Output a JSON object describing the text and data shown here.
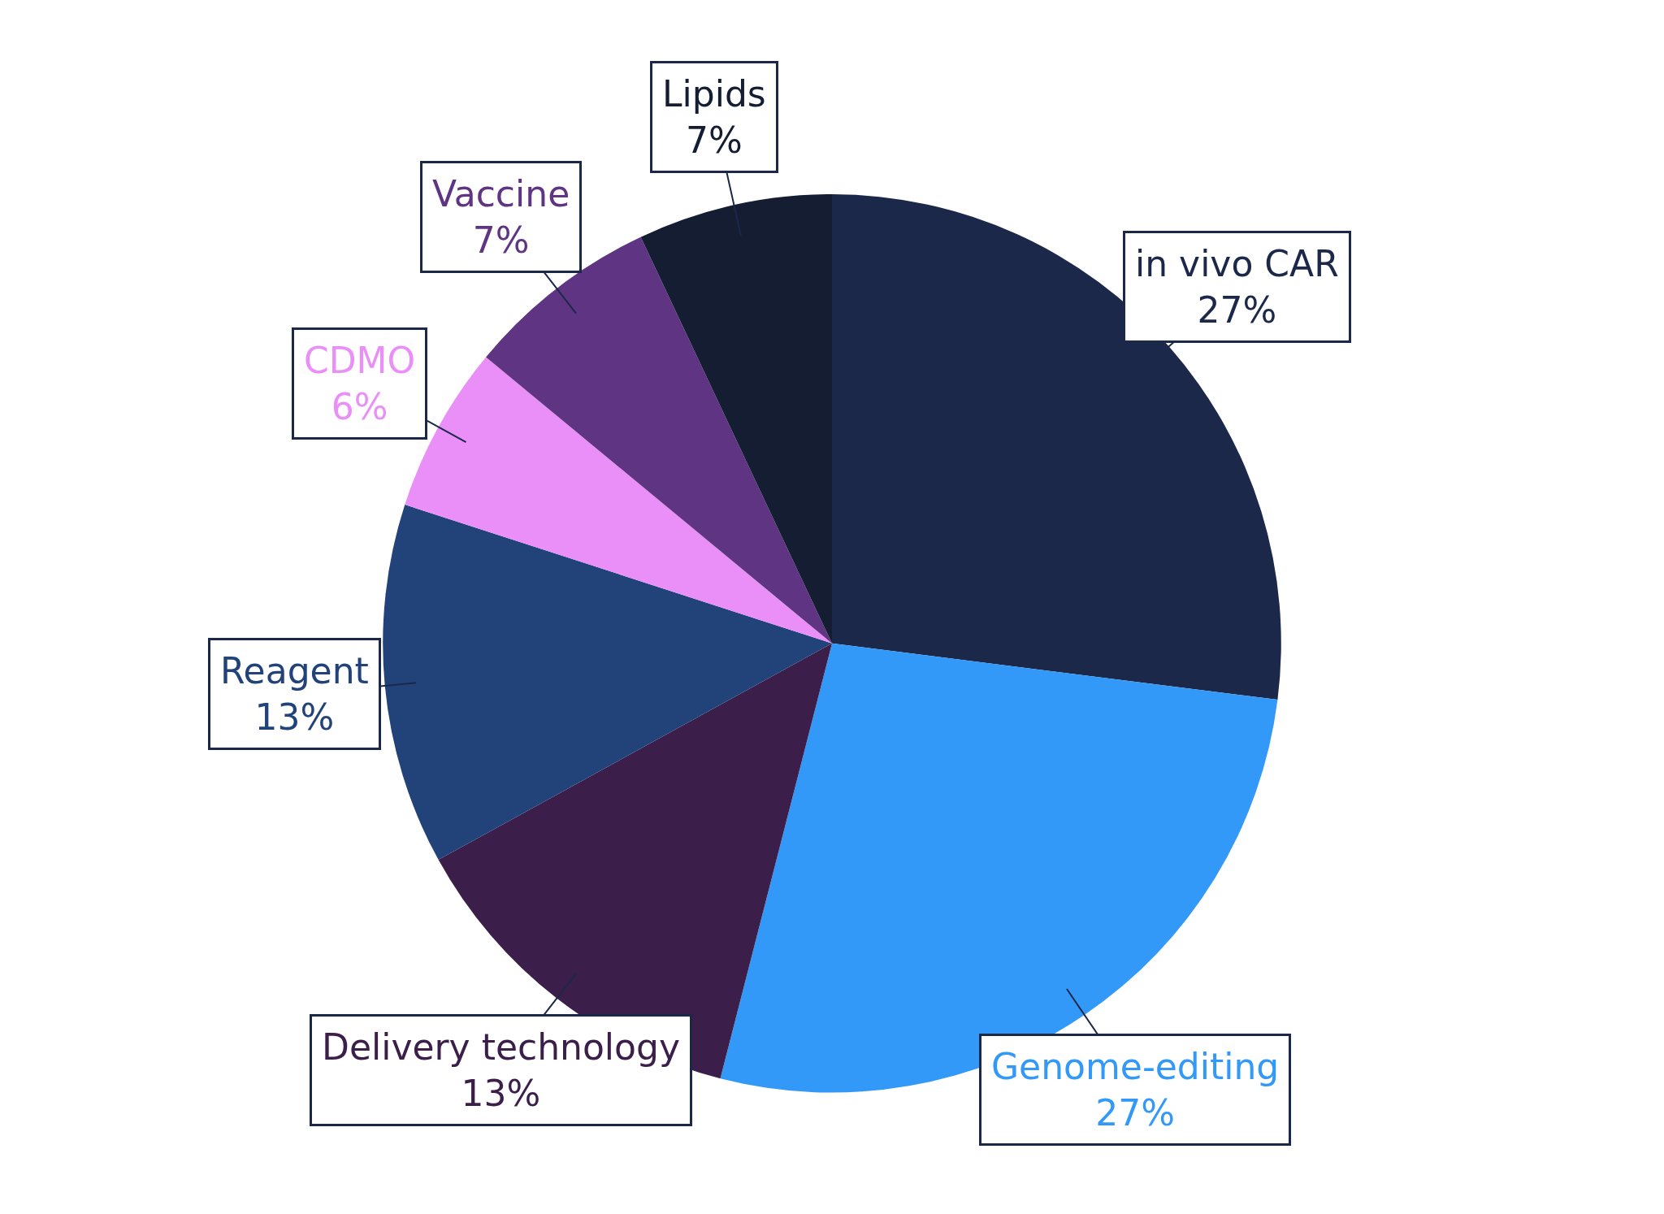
{
  "chart_data": {
    "type": "pie",
    "categories": [
      "in vivo CAR",
      "Genome-editing",
      "Delivery technology",
      "Reagent",
      "CDMO",
      "Vaccine",
      "Lipids"
    ],
    "values": [
      27,
      27,
      13,
      13,
      6,
      7,
      7
    ],
    "value_labels": [
      "27%",
      "27%",
      "13%",
      "13%",
      "6%",
      "7%",
      "7%"
    ],
    "colors": [
      "#1b2849",
      "#3399f8",
      "#3c1e4a",
      "#22437a",
      "#ea8ff7",
      "#5f3482",
      "#151d33"
    ],
    "legend": false
  }
}
